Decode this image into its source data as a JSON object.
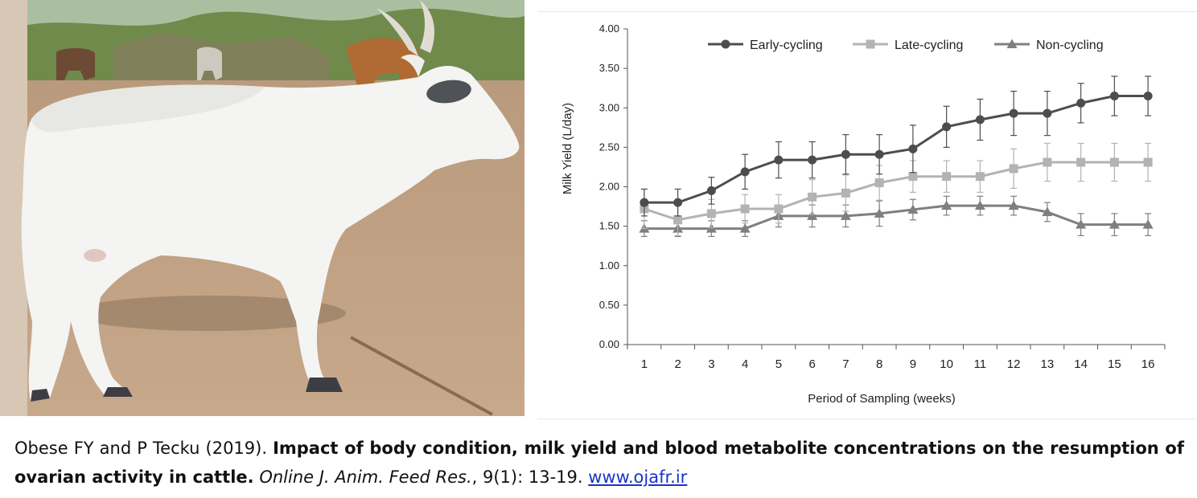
{
  "photo": {
    "description_icon": "white-zebu-cow-photo"
  },
  "chart_data": {
    "type": "line",
    "xlabel": "Period of Sampling (weeks)",
    "ylabel": "Milk Yield (L/day)",
    "categories": [
      "1",
      "2",
      "3",
      "4",
      "5",
      "6",
      "7",
      "8",
      "9",
      "10",
      "11",
      "12",
      "13",
      "14",
      "15",
      "16"
    ],
    "yticks": [
      "0.00",
      "0.50",
      "1.00",
      "1.50",
      "2.00",
      "2.50",
      "3.00",
      "3.50",
      "4.00"
    ],
    "ylim": [
      0,
      4
    ],
    "grid": false,
    "legend_position": "top",
    "series": [
      {
        "name": "Early-cycling",
        "color": "#4d4d4d",
        "marker": "circle",
        "values": [
          1.8,
          1.8,
          1.95,
          2.19,
          2.34,
          2.34,
          2.41,
          2.41,
          2.48,
          2.76,
          2.85,
          2.93,
          2.93,
          3.06,
          3.15,
          3.15
        ],
        "errors": [
          0.17,
          0.17,
          0.17,
          0.22,
          0.23,
          0.23,
          0.25,
          0.25,
          0.3,
          0.26,
          0.26,
          0.28,
          0.28,
          0.25,
          0.25,
          0.25
        ]
      },
      {
        "name": "Late-cycling",
        "color": "#b3b3b3",
        "marker": "square",
        "values": [
          1.72,
          1.58,
          1.66,
          1.72,
          1.72,
          1.87,
          1.92,
          2.05,
          2.13,
          2.13,
          2.13,
          2.23,
          2.31,
          2.31,
          2.31,
          2.31
        ],
        "errors": [
          0.25,
          0.2,
          0.18,
          0.18,
          0.18,
          0.22,
          0.23,
          0.22,
          0.2,
          0.2,
          0.2,
          0.25,
          0.24,
          0.24,
          0.24,
          0.24
        ]
      },
      {
        "name": "Non-cycling",
        "color": "#7f7f7f",
        "marker": "triangle",
        "values": [
          1.47,
          1.47,
          1.47,
          1.47,
          1.63,
          1.63,
          1.63,
          1.66,
          1.71,
          1.76,
          1.76,
          1.76,
          1.68,
          1.52,
          1.52,
          1.52
        ],
        "errors": [
          0.1,
          0.1,
          0.1,
          0.1,
          0.14,
          0.14,
          0.14,
          0.16,
          0.13,
          0.12,
          0.12,
          0.12,
          0.12,
          0.14,
          0.14,
          0.14
        ]
      }
    ]
  },
  "caption": {
    "authors": "Obese FY and P Tecku (2019). ",
    "title": "Impact of body condition, milk yield and blood metabolite concentrations on the resumption of ovarian activity in cattle.",
    "journal": "Online J. Anim. Feed Res.",
    "citation": ", 9(1): 13-19. ",
    "link": "www.ojafr.ir"
  }
}
